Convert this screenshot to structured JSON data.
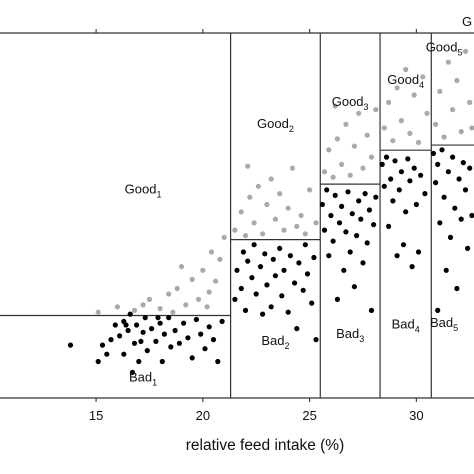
{
  "chart_data": {
    "type": "scatter",
    "xlabel": "relative feed intake (%)",
    "ylabel": "",
    "xlim": [
      10.5,
      32.7
    ],
    "ylim": [
      0,
      10
    ],
    "x_ticks": [
      15,
      20,
      25,
      30
    ],
    "tick_labels": [
      "15",
      "20",
      "25",
      "30"
    ],
    "grid": false,
    "colors": {
      "good": "#a9a9a9",
      "bad": "#000000",
      "frame": "#333333"
    },
    "regions": [
      {
        "x0": 10.5,
        "x1": 21.3,
        "threshold": 2.26,
        "good_label": "Good",
        "good_sub": "1",
        "bad_label": "Bad",
        "bad_sub": "1"
      },
      {
        "x0": 21.3,
        "x1": 25.5,
        "threshold": 4.34,
        "good_label": "Good",
        "good_sub": "2",
        "bad_label": "Bad",
        "bad_sub": "2"
      },
      {
        "x0": 25.5,
        "x1": 28.3,
        "threshold": 5.86,
        "good_label": "Good",
        "good_sub": "3",
        "bad_label": "Bad",
        "bad_sub": "3"
      },
      {
        "x0": 28.3,
        "x1": 30.7,
        "threshold": 6.79,
        "good_label": "Good",
        "good_sub": "4",
        "bad_label": "Bad",
        "bad_sub": "4"
      },
      {
        "x0": 30.7,
        "x1": 32.7,
        "threshold": 6.93,
        "good_label": "Good",
        "good_sub": "5",
        "bad_label": "Bad",
        "bad_sub": "5"
      }
    ],
    "edge_label": "G",
    "series": [
      {
        "category": "bad",
        "points": [
          [
            13.8,
            1.45
          ],
          [
            15.1,
            1.0
          ],
          [
            15.3,
            1.45
          ],
          [
            15.5,
            1.2
          ],
          [
            15.7,
            1.6
          ],
          [
            15.9,
            2.0
          ],
          [
            16.1,
            1.7
          ],
          [
            16.3,
            2.1
          ],
          [
            16.3,
            1.2
          ],
          [
            16.5,
            1.85
          ],
          [
            16.6,
            2.3
          ],
          [
            16.7,
            0.7
          ],
          [
            16.8,
            1.5
          ],
          [
            16.9,
            2.0
          ],
          [
            17.0,
            1.0
          ],
          [
            17.1,
            1.55
          ],
          [
            17.2,
            1.8
          ],
          [
            17.3,
            2.2
          ],
          [
            17.4,
            1.3
          ],
          [
            17.6,
            1.9
          ],
          [
            17.8,
            1.55
          ],
          [
            18.0,
            2.05
          ],
          [
            18.1,
            1.0
          ],
          [
            18.2,
            1.75
          ],
          [
            18.4,
            2.2
          ],
          [
            18.5,
            1.4
          ],
          [
            18.7,
            1.85
          ],
          [
            18.9,
            1.5
          ],
          [
            19.1,
            2.05
          ],
          [
            19.3,
            1.65
          ],
          [
            19.5,
            1.1
          ],
          [
            19.7,
            2.15
          ],
          [
            19.9,
            1.75
          ],
          [
            20.1,
            1.35
          ],
          [
            20.3,
            1.95
          ],
          [
            20.5,
            1.6
          ],
          [
            20.7,
            1.0
          ],
          [
            20.9,
            2.1
          ],
          [
            16.4,
            2.0
          ],
          [
            17.9,
            2.2
          ],
          [
            21.5,
            2.7
          ],
          [
            21.6,
            3.5
          ],
          [
            21.8,
            3.0
          ],
          [
            21.9,
            4.0
          ],
          [
            22.0,
            2.4
          ],
          [
            22.1,
            3.75
          ],
          [
            22.3,
            3.3
          ],
          [
            22.4,
            4.2
          ],
          [
            22.5,
            2.85
          ],
          [
            22.7,
            3.6
          ],
          [
            22.8,
            2.3
          ],
          [
            22.9,
            3.95
          ],
          [
            23.0,
            3.1
          ],
          [
            23.2,
            2.5
          ],
          [
            23.3,
            3.8
          ],
          [
            23.4,
            3.35
          ],
          [
            23.6,
            4.1
          ],
          [
            23.7,
            2.8
          ],
          [
            23.8,
            3.5
          ],
          [
            24.0,
            2.35
          ],
          [
            24.1,
            3.9
          ],
          [
            24.3,
            3.15
          ],
          [
            24.4,
            1.9
          ],
          [
            24.5,
            3.7
          ],
          [
            24.7,
            2.95
          ],
          [
            24.8,
            4.2
          ],
          [
            24.9,
            3.4
          ],
          [
            25.1,
            2.6
          ],
          [
            25.2,
            3.85
          ],
          [
            25.3,
            1.6
          ],
          [
            25.6,
            5.3
          ],
          [
            25.7,
            4.6
          ],
          [
            25.8,
            5.7
          ],
          [
            25.9,
            3.9
          ],
          [
            26.0,
            5.0
          ],
          [
            26.1,
            4.3
          ],
          [
            26.2,
            5.55
          ],
          [
            26.3,
            2.7
          ],
          [
            26.4,
            4.8
          ],
          [
            26.5,
            5.25
          ],
          [
            26.6,
            3.5
          ],
          [
            26.7,
            4.55
          ],
          [
            26.8,
            5.65
          ],
          [
            26.9,
            4.0
          ],
          [
            27.0,
            5.05
          ],
          [
            27.1,
            3.05
          ],
          [
            27.2,
            4.45
          ],
          [
            27.3,
            5.4
          ],
          [
            27.4,
            4.9
          ],
          [
            27.5,
            3.7
          ],
          [
            27.6,
            5.6
          ],
          [
            27.7,
            4.25
          ],
          [
            27.8,
            5.15
          ],
          [
            27.9,
            2.4
          ],
          [
            28.0,
            4.75
          ],
          [
            28.1,
            5.5
          ],
          [
            28.4,
            6.4
          ],
          [
            28.5,
            5.8
          ],
          [
            28.6,
            6.6
          ],
          [
            28.7,
            4.7
          ],
          [
            28.8,
            6.0
          ],
          [
            28.9,
            5.4
          ],
          [
            29.0,
            6.5
          ],
          [
            29.1,
            3.9
          ],
          [
            29.2,
            5.7
          ],
          [
            29.3,
            6.2
          ],
          [
            29.4,
            4.2
          ],
          [
            29.5,
            5.1
          ],
          [
            29.6,
            6.55
          ],
          [
            29.7,
            5.95
          ],
          [
            29.8,
            3.6
          ],
          [
            29.9,
            6.3
          ],
          [
            30.0,
            5.3
          ],
          [
            30.1,
            4.0
          ],
          [
            30.2,
            6.1
          ],
          [
            30.4,
            5.6
          ],
          [
            30.8,
            6.7
          ],
          [
            30.9,
            5.9
          ],
          [
            31.0,
            6.4
          ],
          [
            31.1,
            4.8
          ],
          [
            31.2,
            6.8
          ],
          [
            31.3,
            5.5
          ],
          [
            31.4,
            3.5
          ],
          [
            31.5,
            6.2
          ],
          [
            31.6,
            4.4
          ],
          [
            31.7,
            6.6
          ],
          [
            31.8,
            5.2
          ],
          [
            31.9,
            3.0
          ],
          [
            32.0,
            6.0
          ],
          [
            32.1,
            4.9
          ],
          [
            32.2,
            6.45
          ],
          [
            32.3,
            5.7
          ],
          [
            32.4,
            4.1
          ],
          [
            32.5,
            6.3
          ],
          [
            32.6,
            5.0
          ],
          [
            31.0,
            2.4
          ]
        ]
      },
      {
        "category": "good",
        "points": [
          [
            15.1,
            2.35
          ],
          [
            16.0,
            2.5
          ],
          [
            16.8,
            2.4
          ],
          [
            17.5,
            2.7
          ],
          [
            18.0,
            2.45
          ],
          [
            18.4,
            2.85
          ],
          [
            18.8,
            3.0
          ],
          [
            19.2,
            2.55
          ],
          [
            19.5,
            3.25
          ],
          [
            19.8,
            2.7
          ],
          [
            20.0,
            3.5
          ],
          [
            20.3,
            2.9
          ],
          [
            20.4,
            4.0
          ],
          [
            20.6,
            3.2
          ],
          [
            20.8,
            3.8
          ],
          [
            21.0,
            4.4
          ],
          [
            20.2,
            2.5
          ],
          [
            19.0,
            3.6
          ],
          [
            17.2,
            2.55
          ],
          [
            18.6,
            2.35
          ],
          [
            21.5,
            4.6
          ],
          [
            21.8,
            5.1
          ],
          [
            22.0,
            4.45
          ],
          [
            22.2,
            5.5
          ],
          [
            22.4,
            4.8
          ],
          [
            22.6,
            5.8
          ],
          [
            22.8,
            4.5
          ],
          [
            23.0,
            5.3
          ],
          [
            23.2,
            6.0
          ],
          [
            23.4,
            4.9
          ],
          [
            23.6,
            5.6
          ],
          [
            23.8,
            4.6
          ],
          [
            24.0,
            5.2
          ],
          [
            24.2,
            6.3
          ],
          [
            24.4,
            4.7
          ],
          [
            24.6,
            5.0
          ],
          [
            24.8,
            4.5
          ],
          [
            25.0,
            5.7
          ],
          [
            25.3,
            4.8
          ],
          [
            22.1,
            6.35
          ],
          [
            25.7,
            6.2
          ],
          [
            25.9,
            6.8
          ],
          [
            26.1,
            6.05
          ],
          [
            26.3,
            7.1
          ],
          [
            26.5,
            6.4
          ],
          [
            26.7,
            7.5
          ],
          [
            26.9,
            6.1
          ],
          [
            27.1,
            6.9
          ],
          [
            27.3,
            7.8
          ],
          [
            27.5,
            6.3
          ],
          [
            27.7,
            7.2
          ],
          [
            27.9,
            6.6
          ],
          [
            28.1,
            7.9
          ],
          [
            26.2,
            8.0
          ],
          [
            28.5,
            7.4
          ],
          [
            28.7,
            8.1
          ],
          [
            28.9,
            7.05
          ],
          [
            29.1,
            8.5
          ],
          [
            29.3,
            7.6
          ],
          [
            29.5,
            9.0
          ],
          [
            29.7,
            7.25
          ],
          [
            29.9,
            8.3
          ],
          [
            30.1,
            7.0
          ],
          [
            30.3,
            8.8
          ],
          [
            30.5,
            7.8
          ],
          [
            30.9,
            7.5
          ],
          [
            31.1,
            8.4
          ],
          [
            31.3,
            7.15
          ],
          [
            31.5,
            9.2
          ],
          [
            31.7,
            7.9
          ],
          [
            31.9,
            8.7
          ],
          [
            32.1,
            7.3
          ],
          [
            32.3,
            9.5
          ],
          [
            32.5,
            8.1
          ],
          [
            32.6,
            7.4
          ]
        ]
      }
    ]
  }
}
